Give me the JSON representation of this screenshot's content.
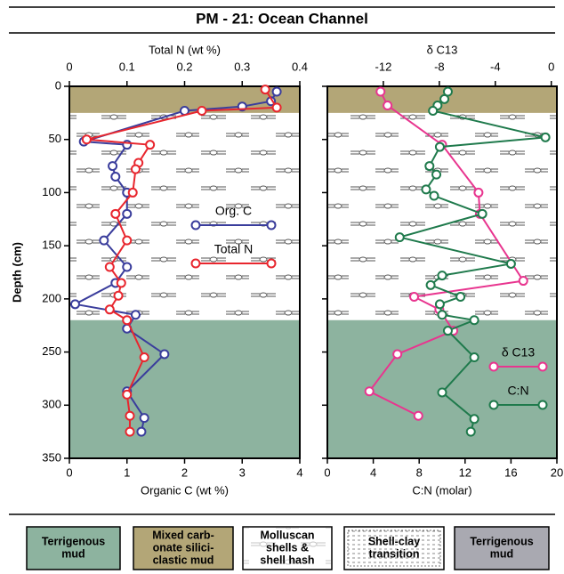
{
  "title": "PM - 21:  Ocean Channel",
  "chart_data": [
    {
      "type": "line",
      "y_label": "Depth (cm)",
      "x_label": "Organic C (wt %)",
      "x2_label": "Total N (wt %)",
      "xlim": [
        0,
        4
      ],
      "xticks": [
        0,
        1,
        2,
        3,
        4
      ],
      "x2lim": [
        0,
        0.4
      ],
      "x2ticks": [
        0,
        0.1,
        0.2,
        0.3,
        0.4
      ],
      "ylim": [
        350,
        0
      ],
      "yticks": [
        0,
        50,
        100,
        150,
        200,
        250,
        300,
        350
      ],
      "units": [
        {
          "color": "#b3a677",
          "top": 0,
          "bottom": 25
        },
        {
          "color": "#8db39f",
          "top": 220,
          "bottom": 350
        }
      ],
      "series": [
        {
          "name": "Org. C",
          "color": "#3a3d9c",
          "x": [
            3.6,
            3.5,
            3.0,
            2.0,
            0.25,
            1.0,
            0.75,
            0.8,
            1.0,
            1.0,
            0.6,
            1.0,
            0.8,
            0.1,
            1.15,
            1.0,
            1.65,
            1.0,
            1.3,
            1.25
          ],
          "y": [
            5,
            14,
            19,
            23,
            52,
            55,
            75,
            85,
            100,
            120,
            145,
            170,
            185,
            205,
            215,
            228,
            252,
            287,
            312,
            325
          ]
        },
        {
          "name": "Total N",
          "color": "#e8262e",
          "axis": "x2",
          "x": [
            0.34,
            0.36,
            0.23,
            0.03,
            0.14,
            0.12,
            0.115,
            0.11,
            0.08,
            0.1,
            0.07,
            0.09,
            0.085,
            0.07,
            0.1,
            0.13,
            0.1,
            0.105,
            0.105
          ],
          "y": [
            3,
            20,
            23,
            50,
            55,
            72,
            78,
            100,
            120,
            145,
            170,
            185,
            197,
            210,
            220,
            255,
            290,
            310,
            325
          ]
        }
      ]
    },
    {
      "type": "line",
      "x_label": "C:N (molar)",
      "x2_label": "δ C13",
      "xlim": [
        0,
        20
      ],
      "xticks": [
        0,
        4,
        8,
        12,
        16,
        20
      ],
      "x2lim": [
        -16,
        0.4
      ],
      "x2ticks": [
        -12,
        -8,
        -4,
        0
      ],
      "ylim": [
        350,
        0
      ],
      "yticks": [
        0,
        50,
        100,
        150,
        200,
        250,
        300,
        350
      ],
      "series": [
        {
          "name": "δ C13",
          "color": "#e8358f",
          "axis": "x2",
          "x": [
            -12.2,
            -11.7,
            -7.8,
            -5.2,
            -5.1,
            -2.0,
            -9.8,
            -8.0,
            -7.0,
            -11.0,
            -13.0,
            -9.5
          ],
          "y": [
            5,
            18,
            55,
            100,
            120,
            183,
            198,
            210,
            230,
            252,
            287,
            310
          ]
        },
        {
          "name": "C:N",
          "color": "#1f7a4c",
          "x": [
            10.5,
            10.2,
            9.6,
            9.2,
            19.0,
            9.8,
            8.9,
            9.5,
            8.6,
            9.3,
            13.5,
            6.3,
            16.0,
            10.0,
            9.0,
            11.6,
            9.8,
            10.0,
            12.8,
            10.5,
            12.8,
            10.0,
            12.8,
            12.5
          ],
          "y": [
            5,
            12,
            18,
            23,
            48,
            57,
            75,
            83,
            97,
            103,
            120,
            142,
            167,
            178,
            187,
            198,
            205,
            215,
            220,
            230,
            255,
            288,
            313,
            325
          ]
        }
      ]
    }
  ],
  "facies_legend": [
    {
      "lines": [
        "Terrigenous",
        "mud"
      ],
      "color": "#8db39f"
    },
    {
      "lines": [
        "Mixed carb-",
        "onate silici-",
        "clastic mud"
      ],
      "color": "#b3a677"
    },
    {
      "lines": [
        "Molluscan",
        "shells &",
        "shell hash"
      ],
      "color": "#ffffff"
    },
    {
      "lines": [
        "Shell-clay",
        "transition"
      ],
      "color": "#ffffff"
    },
    {
      "lines": [
        "Terrigenous",
        "mud"
      ],
      "color": "#a9a9b1"
    }
  ]
}
